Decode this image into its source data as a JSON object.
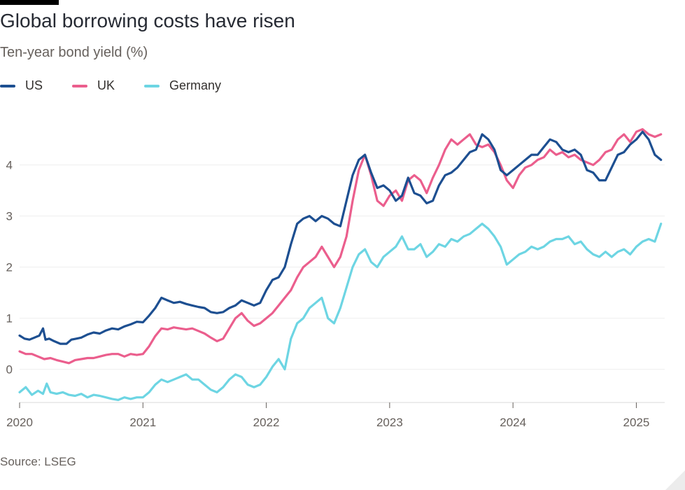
{
  "header": {
    "title": "Global borrowing costs have risen",
    "subtitle": "Ten-year bond yield (%)"
  },
  "footer": {
    "source": "Source: LSEG"
  },
  "colors": {
    "us": "#1d4f91",
    "uk": "#eb5e8d",
    "germany": "#6dd5e3",
    "grid": "#eeeeee",
    "axis": "#d9d9d9"
  },
  "chart_data": {
    "type": "line",
    "title": "Global borrowing costs have risen",
    "subtitle": "Ten-year bond yield (%)",
    "xlabel": "",
    "ylabel": "Ten-year bond yield (%)",
    "xlim": [
      2020.0,
      2025.23
    ],
    "ylim": [
      -0.65,
      4.9
    ],
    "grid": true,
    "legend_position": "top-left",
    "x_ticks": [
      {
        "value": 2020,
        "label": "2020"
      },
      {
        "value": 2021,
        "label": "2021"
      },
      {
        "value": 2022,
        "label": "2022"
      },
      {
        "value": 2023,
        "label": "2023"
      },
      {
        "value": 2024,
        "label": "2024"
      },
      {
        "value": 2025,
        "label": "2025"
      }
    ],
    "y_ticks": [
      {
        "value": 0,
        "label": "0"
      },
      {
        "value": 1,
        "label": "1"
      },
      {
        "value": 2,
        "label": "2"
      },
      {
        "value": 3,
        "label": "3"
      },
      {
        "value": 4,
        "label": "4"
      }
    ],
    "series": [
      {
        "name": "US",
        "key": "us",
        "x": [
          2020.0,
          2020.04,
          2020.08,
          2020.12,
          2020.16,
          2020.19,
          2020.21,
          2020.24,
          2020.28,
          2020.33,
          2020.38,
          2020.42,
          2020.46,
          2020.5,
          2020.55,
          2020.6,
          2020.65,
          2020.7,
          2020.75,
          2020.8,
          2020.85,
          2020.9,
          2020.95,
          2021.0,
          2021.05,
          2021.1,
          2021.15,
          2021.2,
          2021.25,
          2021.3,
          2021.35,
          2021.4,
          2021.45,
          2021.5,
          2021.55,
          2021.6,
          2021.65,
          2021.7,
          2021.75,
          2021.8,
          2021.85,
          2021.9,
          2021.95,
          2022.0,
          2022.05,
          2022.1,
          2022.15,
          2022.2,
          2022.25,
          2022.3,
          2022.35,
          2022.4,
          2022.45,
          2022.5,
          2022.55,
          2022.6,
          2022.65,
          2022.7,
          2022.75,
          2022.8,
          2022.85,
          2022.9,
          2022.95,
          2023.0,
          2023.05,
          2023.1,
          2023.15,
          2023.2,
          2023.25,
          2023.3,
          2023.35,
          2023.4,
          2023.45,
          2023.5,
          2023.55,
          2023.6,
          2023.65,
          2023.7,
          2023.75,
          2023.8,
          2023.85,
          2023.9,
          2023.95,
          2024.0,
          2024.05,
          2024.1,
          2024.15,
          2024.2,
          2024.25,
          2024.3,
          2024.35,
          2024.4,
          2024.45,
          2024.5,
          2024.55,
          2024.6,
          2024.65,
          2024.7,
          2024.75,
          2024.8,
          2024.85,
          2024.9,
          2024.95,
          2025.0,
          2025.05,
          2025.1,
          2025.15,
          2025.2
        ],
        "values": [
          0.66,
          0.6,
          0.58,
          0.62,
          0.66,
          0.8,
          0.58,
          0.6,
          0.55,
          0.5,
          0.5,
          0.58,
          0.6,
          0.62,
          0.68,
          0.72,
          0.7,
          0.76,
          0.8,
          0.78,
          0.84,
          0.88,
          0.93,
          0.92,
          1.05,
          1.2,
          1.4,
          1.35,
          1.3,
          1.32,
          1.28,
          1.25,
          1.22,
          1.2,
          1.12,
          1.1,
          1.12,
          1.2,
          1.25,
          1.35,
          1.3,
          1.25,
          1.3,
          1.55,
          1.75,
          1.8,
          2.0,
          2.45,
          2.85,
          2.95,
          3.0,
          2.9,
          3.0,
          2.95,
          2.85,
          2.8,
          3.3,
          3.8,
          4.1,
          4.2,
          3.85,
          3.55,
          3.6,
          3.5,
          3.3,
          3.4,
          3.75,
          3.45,
          3.4,
          3.25,
          3.3,
          3.6,
          3.8,
          3.85,
          3.95,
          4.1,
          4.25,
          4.3,
          4.6,
          4.5,
          4.3,
          3.9,
          3.8,
          3.9,
          4.0,
          4.1,
          4.2,
          4.2,
          4.35,
          4.5,
          4.45,
          4.3,
          4.25,
          4.3,
          4.2,
          3.9,
          3.85,
          3.7,
          3.7,
          3.95,
          4.2,
          4.25,
          4.4,
          4.5,
          4.65,
          4.5,
          4.2,
          4.1
        ]
      },
      {
        "name": "UK",
        "key": "uk",
        "x": [
          2020.0,
          2020.05,
          2020.1,
          2020.15,
          2020.2,
          2020.25,
          2020.3,
          2020.35,
          2020.4,
          2020.45,
          2020.5,
          2020.55,
          2020.6,
          2020.65,
          2020.7,
          2020.75,
          2020.8,
          2020.85,
          2020.9,
          2020.95,
          2021.0,
          2021.05,
          2021.1,
          2021.15,
          2021.2,
          2021.25,
          2021.3,
          2021.35,
          2021.4,
          2021.45,
          2021.5,
          2021.55,
          2021.6,
          2021.65,
          2021.7,
          2021.75,
          2021.8,
          2021.85,
          2021.9,
          2021.95,
          2022.0,
          2022.05,
          2022.1,
          2022.15,
          2022.2,
          2022.25,
          2022.3,
          2022.35,
          2022.4,
          2022.45,
          2022.5,
          2022.55,
          2022.6,
          2022.65,
          2022.7,
          2022.75,
          2022.8,
          2022.85,
          2022.9,
          2022.95,
          2023.0,
          2023.05,
          2023.1,
          2023.15,
          2023.2,
          2023.25,
          2023.3,
          2023.35,
          2023.4,
          2023.45,
          2023.5,
          2023.55,
          2023.6,
          2023.65,
          2023.7,
          2023.75,
          2023.8,
          2023.85,
          2023.9,
          2023.95,
          2024.0,
          2024.05,
          2024.1,
          2024.15,
          2024.2,
          2024.25,
          2024.3,
          2024.35,
          2024.4,
          2024.45,
          2024.5,
          2024.55,
          2024.6,
          2024.65,
          2024.7,
          2024.75,
          2024.8,
          2024.85,
          2024.9,
          2024.95,
          2025.0,
          2025.05,
          2025.1,
          2025.15,
          2025.2
        ],
        "values": [
          0.35,
          0.3,
          0.3,
          0.25,
          0.2,
          0.22,
          0.18,
          0.15,
          0.12,
          0.18,
          0.2,
          0.22,
          0.22,
          0.25,
          0.28,
          0.3,
          0.3,
          0.25,
          0.3,
          0.28,
          0.3,
          0.45,
          0.65,
          0.8,
          0.78,
          0.82,
          0.8,
          0.78,
          0.8,
          0.75,
          0.7,
          0.62,
          0.55,
          0.6,
          0.8,
          1.0,
          1.1,
          0.95,
          0.85,
          0.9,
          1.0,
          1.1,
          1.25,
          1.4,
          1.55,
          1.8,
          2.0,
          2.1,
          2.2,
          2.4,
          2.2,
          2.0,
          2.2,
          2.6,
          3.3,
          3.9,
          4.2,
          3.8,
          3.3,
          3.2,
          3.4,
          3.5,
          3.3,
          3.7,
          3.8,
          3.7,
          3.45,
          3.75,
          4.0,
          4.3,
          4.5,
          4.4,
          4.5,
          4.6,
          4.4,
          4.35,
          4.4,
          4.25,
          4.0,
          3.7,
          3.55,
          3.8,
          3.95,
          4.0,
          4.1,
          4.15,
          4.3,
          4.2,
          4.25,
          4.15,
          4.2,
          4.1,
          4.05,
          4.0,
          4.1,
          4.25,
          4.3,
          4.5,
          4.6,
          4.45,
          4.65,
          4.7,
          4.6,
          4.55,
          4.6
        ]
      },
      {
        "name": "Germany",
        "key": "germany",
        "x": [
          2020.0,
          2020.05,
          2020.1,
          2020.15,
          2020.19,
          2020.22,
          2020.25,
          2020.3,
          2020.35,
          2020.4,
          2020.45,
          2020.5,
          2020.55,
          2020.6,
          2020.65,
          2020.7,
          2020.75,
          2020.8,
          2020.85,
          2020.9,
          2020.95,
          2021.0,
          2021.05,
          2021.1,
          2021.15,
          2021.2,
          2021.25,
          2021.3,
          2021.35,
          2021.4,
          2021.45,
          2021.5,
          2021.55,
          2021.6,
          2021.65,
          2021.7,
          2021.75,
          2021.8,
          2021.85,
          2021.9,
          2021.95,
          2022.0,
          2022.05,
          2022.1,
          2022.15,
          2022.2,
          2022.25,
          2022.3,
          2022.35,
          2022.4,
          2022.45,
          2022.5,
          2022.55,
          2022.6,
          2022.65,
          2022.7,
          2022.75,
          2022.8,
          2022.85,
          2022.9,
          2022.95,
          2023.0,
          2023.05,
          2023.1,
          2023.15,
          2023.2,
          2023.25,
          2023.3,
          2023.35,
          2023.4,
          2023.45,
          2023.5,
          2023.55,
          2023.6,
          2023.65,
          2023.7,
          2023.75,
          2023.8,
          2023.85,
          2023.9,
          2023.95,
          2024.0,
          2024.05,
          2024.1,
          2024.15,
          2024.2,
          2024.25,
          2024.3,
          2024.35,
          2024.4,
          2024.45,
          2024.5,
          2024.55,
          2024.6,
          2024.65,
          2024.7,
          2024.75,
          2024.8,
          2024.85,
          2024.9,
          2024.95,
          2025.0,
          2025.05,
          2025.1,
          2025.15,
          2025.2
        ],
        "values": [
          -0.45,
          -0.35,
          -0.5,
          -0.42,
          -0.48,
          -0.28,
          -0.45,
          -0.48,
          -0.45,
          -0.5,
          -0.52,
          -0.48,
          -0.55,
          -0.5,
          -0.52,
          -0.55,
          -0.58,
          -0.6,
          -0.55,
          -0.58,
          -0.55,
          -0.55,
          -0.45,
          -0.3,
          -0.2,
          -0.25,
          -0.2,
          -0.15,
          -0.1,
          -0.2,
          -0.2,
          -0.3,
          -0.4,
          -0.45,
          -0.35,
          -0.2,
          -0.1,
          -0.15,
          -0.3,
          -0.35,
          -0.3,
          -0.15,
          0.05,
          0.2,
          0.0,
          0.6,
          0.9,
          1.0,
          1.2,
          1.3,
          1.4,
          1.0,
          0.9,
          1.2,
          1.6,
          2.0,
          2.25,
          2.35,
          2.1,
          2.0,
          2.2,
          2.3,
          2.4,
          2.6,
          2.35,
          2.35,
          2.45,
          2.2,
          2.3,
          2.45,
          2.4,
          2.55,
          2.5,
          2.6,
          2.65,
          2.75,
          2.85,
          2.75,
          2.6,
          2.4,
          2.05,
          2.15,
          2.25,
          2.3,
          2.4,
          2.35,
          2.4,
          2.5,
          2.55,
          2.55,
          2.6,
          2.45,
          2.5,
          2.35,
          2.25,
          2.2,
          2.3,
          2.2,
          2.3,
          2.35,
          2.25,
          2.4,
          2.5,
          2.55,
          2.5,
          2.85
        ]
      }
    ]
  }
}
